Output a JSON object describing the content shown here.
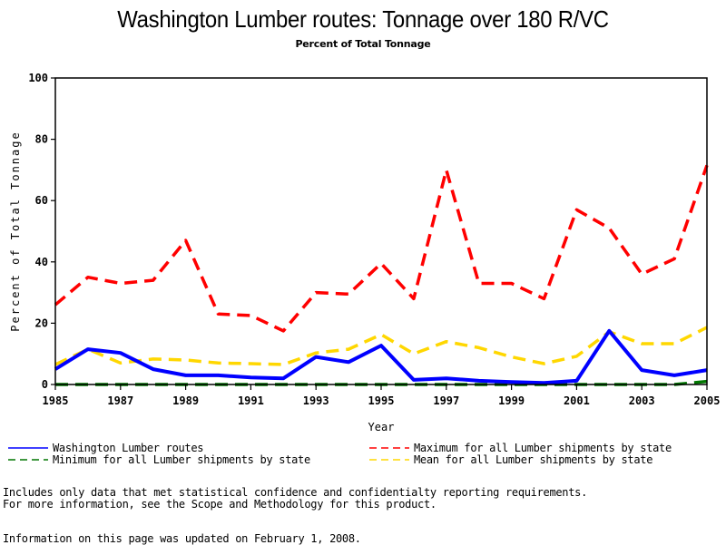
{
  "chart_data": {
    "type": "line",
    "title": "Washington Lumber routes: Tonnage over 180 R/VC",
    "subtitle": "Percent of Total Tonnage",
    "xlabel": "Year",
    "ylabel": "Percent of Total Tonnage",
    "xlim": [
      1985,
      2005
    ],
    "ylim": [
      0,
      100
    ],
    "x_ticks": [
      "1985",
      "1987",
      "1989",
      "1991",
      "1993",
      "1995",
      "1997",
      "1999",
      "2001",
      "2003",
      "2005"
    ],
    "y_ticks": [
      "0",
      "20",
      "40",
      "60",
      "80",
      "100"
    ],
    "grid": false,
    "legend_position": "bottom",
    "x": [
      1985,
      1986,
      1987,
      1988,
      1989,
      1990,
      1991,
      1992,
      1993,
      1994,
      1995,
      1996,
      1997,
      1998,
      1999,
      2000,
      2001,
      2002,
      2003,
      2004,
      2005
    ],
    "series": [
      {
        "name": "Washington Lumber routes",
        "color": "#0000ff",
        "style": "solid",
        "values": [
          5,
          11.5,
          10.3,
          5,
          3,
          3,
          2.3,
          2,
          9,
          7.3,
          12.7,
          1.5,
          2,
          1.2,
          0.8,
          0.5,
          1.2,
          17.5,
          4.7,
          3,
          4.7
        ]
      },
      {
        "name": "Maximum for all Lumber shipments by state",
        "color": "#ff0000",
        "style": "dashed",
        "values": [
          26,
          35,
          33,
          34,
          47,
          23,
          22.5,
          17.5,
          30,
          29.5,
          39.5,
          28,
          70,
          33,
          33,
          28,
          57,
          51,
          36,
          41,
          71.5
        ]
      },
      {
        "name": "Minimum for all Lumber shipments by state",
        "color": "#007700",
        "style": "dashed",
        "values": [
          0,
          0,
          0,
          0,
          0,
          0,
          0,
          0,
          0,
          0,
          0,
          0,
          0,
          0,
          0,
          0,
          0,
          0,
          0,
          0,
          1
        ]
      },
      {
        "name": "Mean for all Lumber shipments by state",
        "color": "#ffd700",
        "style": "dashed",
        "values": [
          6.5,
          11.5,
          7,
          8.3,
          8,
          7,
          6.8,
          6.5,
          10.3,
          11.5,
          16.3,
          10,
          14,
          12,
          9,
          6.8,
          9.2,
          17.2,
          13.3,
          13.3,
          18.6
        ]
      }
    ]
  },
  "notes": {
    "line1": "Includes only data that met statistical confidence and confidentialty reporting requirements.",
    "line2": "For more information, see the Scope and Methodology for this product.",
    "updated": "Information on this page was updated on February 1, 2008."
  }
}
